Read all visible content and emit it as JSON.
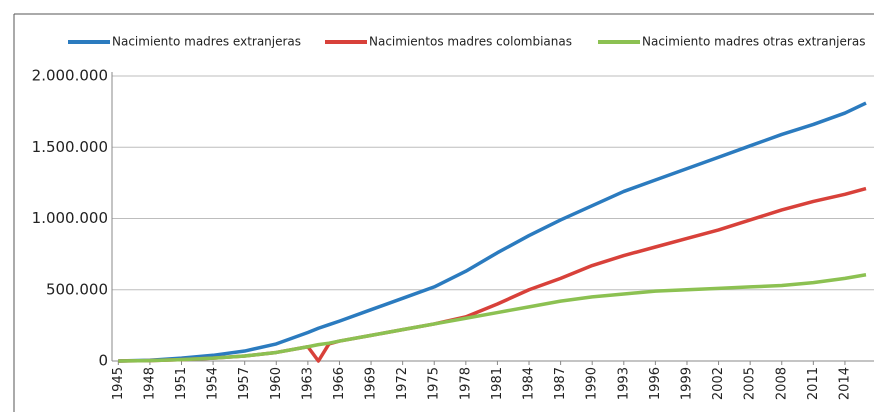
{
  "chart_data": {
    "type": "line",
    "x": [
      1945,
      1948,
      1951,
      1954,
      1957,
      1960,
      1963,
      1964,
      1965,
      1966,
      1969,
      1972,
      1975,
      1978,
      1981,
      1984,
      1987,
      1990,
      1993,
      1996,
      1999,
      2002,
      2005,
      2008,
      2011,
      2014,
      2016
    ],
    "series": [
      {
        "name": "Nacimiento madres extranjeras",
        "color": "#2b7bbf",
        "values": [
          0,
          5000,
          20000,
          40000,
          70000,
          120000,
          200000,
          230000,
          255000,
          280000,
          360000,
          440000,
          520000,
          630000,
          760000,
          880000,
          990000,
          1090000,
          1190000,
          1270000,
          1350000,
          1430000,
          1510000,
          1590000,
          1660000,
          1740000,
          1810000
        ]
      },
      {
        "name": "Nacimientos madres colombianas",
        "color": "#d8413a",
        "values": [
          0,
          3000,
          10000,
          20000,
          35000,
          60000,
          100000,
          0,
          120000,
          140000,
          180000,
          220000,
          260000,
          310000,
          400000,
          500000,
          580000,
          670000,
          740000,
          800000,
          860000,
          920000,
          990000,
          1060000,
          1120000,
          1170000,
          1210000
        ]
      },
      {
        "name": "Nacimiento madres otras extranjeras",
        "color": "#8cc152",
        "values": [
          0,
          3000,
          10000,
          20000,
          35000,
          60000,
          100000,
          115000,
          125000,
          140000,
          180000,
          220000,
          260000,
          300000,
          340000,
          380000,
          420000,
          450000,
          470000,
          490000,
          500000,
          510000,
          520000,
          530000,
          550000,
          580000,
          605000
        ]
      }
    ],
    "xlim": [
      1944.4,
      2016
    ],
    "xticks": [
      1945,
      1948,
      1951,
      1954,
      1957,
      1960,
      1963,
      1966,
      1969,
      1972,
      1975,
      1978,
      1981,
      1984,
      1987,
      1990,
      1993,
      1996,
      1999,
      2002,
      2005,
      2008,
      2011,
      2014
    ],
    "ylim": [
      0,
      2000000
    ],
    "yticks": [
      0,
      {
        "value": 500000,
        "label": "500.000"
      },
      {
        "value": 1000000,
        "label": "1.000.000"
      },
      {
        "value": 1500000,
        "label": "1.500.000"
      },
      {
        "value": 2000000,
        "label": "2.000.000"
      }
    ],
    "grid": true,
    "legend": "top"
  }
}
